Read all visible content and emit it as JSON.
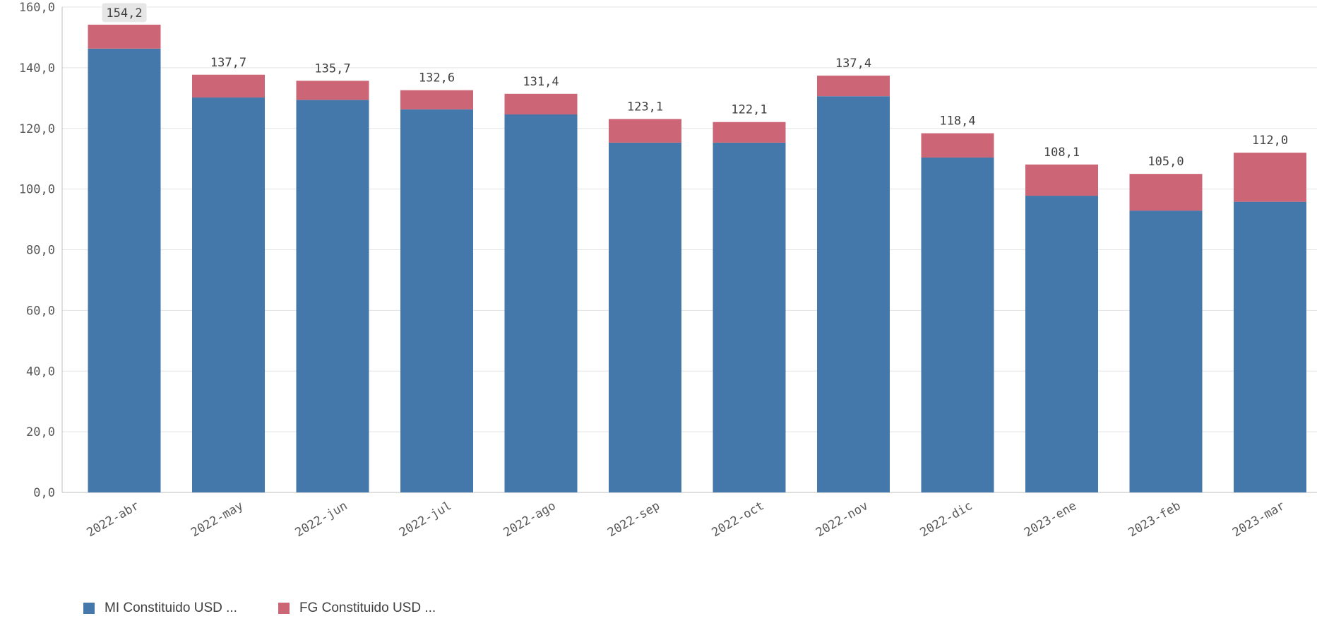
{
  "chart_data": {
    "type": "bar",
    "stacked": true,
    "categories": [
      "2022-abr",
      "2022-may",
      "2022-jun",
      "2022-jul",
      "2022-ago",
      "2022-sep",
      "2022-oct",
      "2022-nov",
      "2022-dic",
      "2023-ene",
      "2023-feb",
      "2023-mar"
    ],
    "series": [
      {
        "name": "MI Constituido USD ...",
        "color": "#4477aa",
        "values": [
          146.3,
          130.2,
          129.4,
          126.3,
          124.6,
          115.3,
          115.3,
          130.6,
          110.4,
          97.8,
          92.9,
          95.8
        ]
      },
      {
        "name": "FG Constituido USD ...",
        "color": "#cc6677",
        "values": [
          7.9,
          7.5,
          6.3,
          6.3,
          6.8,
          7.8,
          6.8,
          6.8,
          8.0,
          10.3,
          12.1,
          16.2
        ]
      }
    ],
    "totals": [
      "154,2",
      "137,7",
      "135,7",
      "132,6",
      "131,4",
      "123,1",
      "122,1",
      "137,4",
      "118,4",
      "108,1",
      "105,0",
      "112,0"
    ],
    "highlighted_total_index": 0,
    "yticks": [
      "0,0",
      "20,0",
      "40,0",
      "60,0",
      "80,0",
      "100,0",
      "120,0",
      "140,0",
      "160,0"
    ],
    "ylim": [
      0,
      160
    ],
    "grid": true,
    "legend_position": "bottom-left"
  },
  "legend": {
    "items": [
      {
        "label": "MI Constituido USD ...",
        "color": "#4477aa"
      },
      {
        "label": "FG Constituido USD ...",
        "color": "#cc6677"
      }
    ]
  }
}
